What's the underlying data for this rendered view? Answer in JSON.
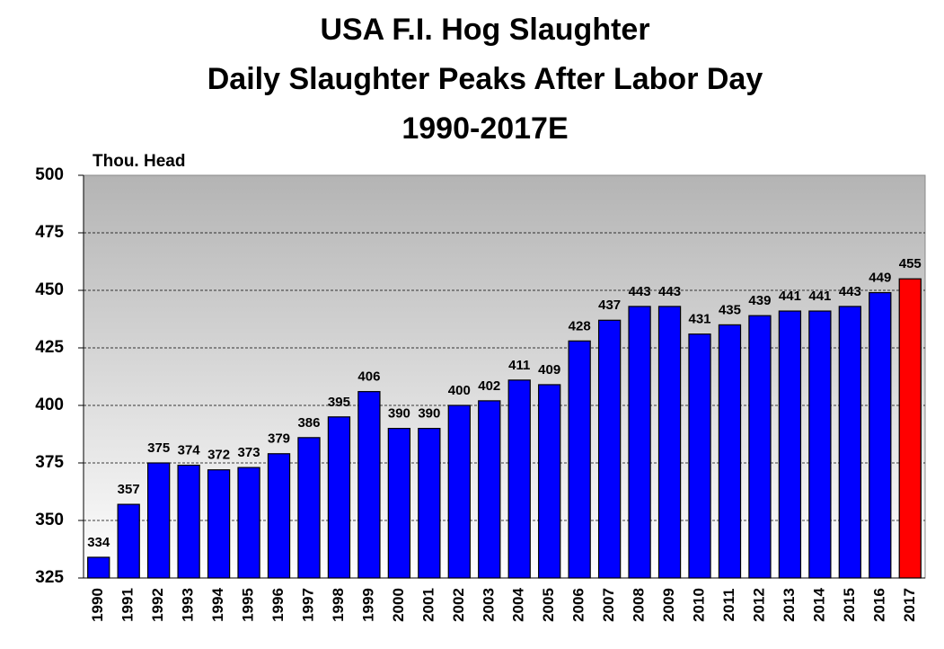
{
  "chart_data": {
    "type": "bar",
    "title": [
      "USA F.I. Hog Slaughter",
      "Daily Slaughter Peaks After Labor Day",
      "1990-2017E"
    ],
    "y_axis_label": "Thou. Head",
    "categories": [
      "1990",
      "1991",
      "1992",
      "1993",
      "1994",
      "1995",
      "1996",
      "1997",
      "1998",
      "1999",
      "2000",
      "2001",
      "2002",
      "2003",
      "2004",
      "2005",
      "2006",
      "2007",
      "2008",
      "2009",
      "2010",
      "2011",
      "2012",
      "2013",
      "2014",
      "2015",
      "2016",
      "2017"
    ],
    "values": [
      334,
      357,
      375,
      374,
      372,
      373,
      379,
      386,
      395,
      406,
      390,
      390,
      400,
      402,
      411,
      409,
      428,
      437,
      443,
      443,
      431,
      435,
      439,
      441,
      441,
      443,
      449,
      455
    ],
    "colors": [
      "#0000ff",
      "#0000ff",
      "#0000ff",
      "#0000ff",
      "#0000ff",
      "#0000ff",
      "#0000ff",
      "#0000ff",
      "#0000ff",
      "#0000ff",
      "#0000ff",
      "#0000ff",
      "#0000ff",
      "#0000ff",
      "#0000ff",
      "#0000ff",
      "#0000ff",
      "#0000ff",
      "#0000ff",
      "#0000ff",
      "#0000ff",
      "#0000ff",
      "#0000ff",
      "#0000ff",
      "#0000ff",
      "#0000ff",
      "#0000ff",
      "#ff0000"
    ],
    "ylim": [
      325,
      500
    ],
    "yticks": [
      325,
      350,
      375,
      400,
      425,
      450,
      475,
      500
    ],
    "grid": true
  }
}
